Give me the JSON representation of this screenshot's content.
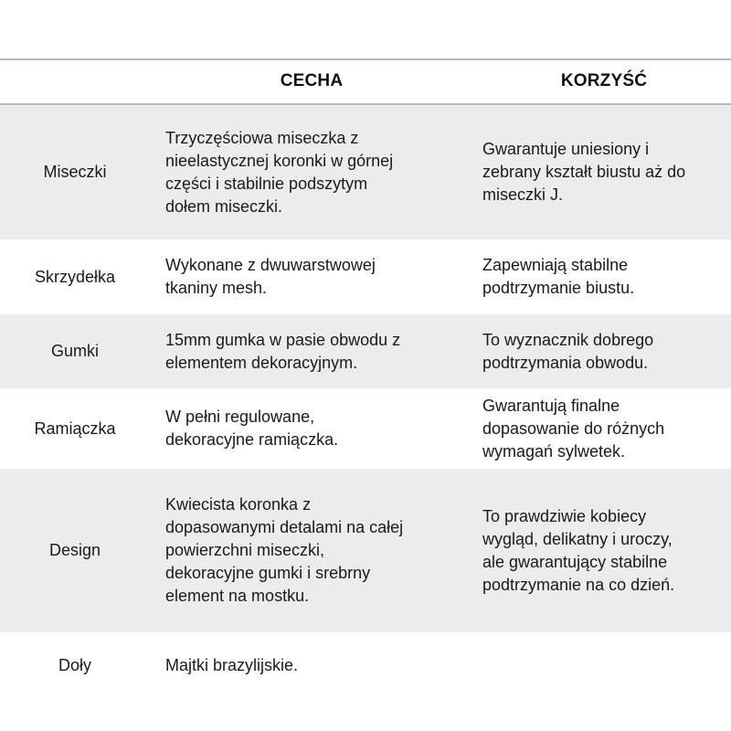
{
  "header": {
    "feature": "CECHA",
    "benefit": "KORZYŚĆ"
  },
  "colors": {
    "row_shade": "#ececec",
    "rule": "#b8b8b8"
  },
  "rows": [
    {
      "name": "Miseczki",
      "feature": "Trzyczęściowa miseczka z\nnieelastycznej koronki w górnej\nczęści i stabilnie podszytym\ndołem miseczki.",
      "benefit": "Gwarantuje uniesiony i\nzebrany kształt biustu aż do\nmiseczki J."
    },
    {
      "name": "Skrzydełka",
      "feature": "Wykonane z dwuwarstwowej\ntkaniny mesh.",
      "benefit": "Zapewniają stabilne\npodtrzymanie biustu."
    },
    {
      "name": "Gumki",
      "feature": "15mm gumka w pasie obwodu z\nelementem dekoracyjnym.",
      "benefit": "To wyznacznik dobrego\npodtrzymania obwodu."
    },
    {
      "name": "Ramiączka",
      "feature": "W pełni regulowane,\ndekoracyjne ramiączka.",
      "benefit": "Gwarantują finalne\ndopasowanie do różnych\nwymagań sylwetek."
    },
    {
      "name": "Design",
      "feature": "Kwiecista koronka z\ndopasowanymi detalami na całej\npowierzchni miseczki,\ndekoracyjne gumki i srebrny\nelement na mostku.",
      "benefit": "To prawdziwie kobiecy\nwygląd, delikatny i uroczy,\nale gwarantujący stabilne\npodtrzymanie na co dzień."
    },
    {
      "name": "Doły",
      "feature": "Majtki brazylijskie.",
      "benefit": ""
    }
  ]
}
